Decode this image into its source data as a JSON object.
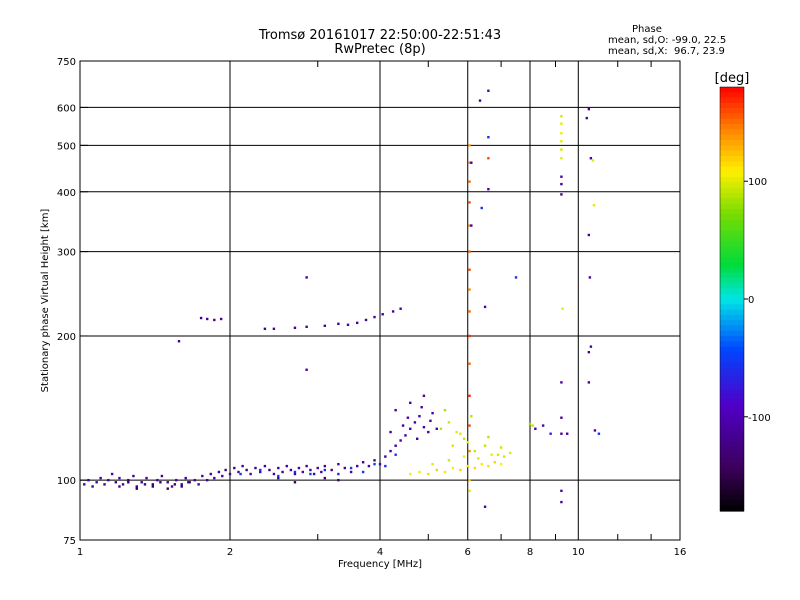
{
  "header": {
    "title": "Tromsø 20161017 22:50:00-22:51:43",
    "subtitle": "RwPretec (8p)"
  },
  "phase_info": {
    "heading": "Phase",
    "line_o": "mean, sd,O: -99.0, 22.5",
    "line_x": "mean, sd,X:  96.7, 23.9"
  },
  "chart_data": {
    "type": "scatter",
    "xlabel": "Frequency [MHz]",
    "ylabel": "Stationary phase Virtual Height [km]",
    "x_scale": "log2",
    "y_scale": "log",
    "xlim": [
      1,
      16
    ],
    "ylim": [
      75,
      750
    ],
    "x_ticks": [
      1,
      2,
      4,
      6,
      8,
      10,
      16
    ],
    "x_tick_labels": [
      "1",
      "2",
      "4",
      "6",
      "8",
      "10",
      "16"
    ],
    "y_ticks": [
      75,
      100,
      200,
      300,
      400,
      500,
      600,
      750
    ],
    "y_tick_labels": [
      "75",
      "100",
      "200",
      "300",
      "400",
      "500",
      "600",
      "750"
    ],
    "grid": true,
    "colorbar": {
      "label": "[deg]",
      "range": [
        -180,
        180
      ],
      "ticks": [
        100,
        0,
        -100
      ],
      "tick_labels": [
        "100",
        "0",
        "-100"
      ]
    },
    "series": [
      {
        "points": [
          [
            1.02,
            98,
            -110
          ],
          [
            1.04,
            100,
            -115
          ],
          [
            1.06,
            97,
            -120
          ],
          [
            1.08,
            99,
            -105
          ],
          [
            1.1,
            101,
            -112
          ],
          [
            1.12,
            98,
            -125
          ],
          [
            1.14,
            100,
            -118
          ],
          [
            1.16,
            103,
            -108
          ],
          [
            1.18,
            99,
            -122
          ],
          [
            1.2,
            101,
            -115
          ],
          [
            1.22,
            98,
            -110
          ],
          [
            1.25,
            100,
            -128
          ],
          [
            1.28,
            102,
            -119
          ],
          [
            1.3,
            97,
            -113
          ],
          [
            1.33,
            99,
            -121
          ],
          [
            1.36,
            101,
            -109
          ],
          [
            1.4,
            98,
            -126
          ],
          [
            1.43,
            100,
            -117
          ],
          [
            1.46,
            102,
            -111
          ],
          [
            1.5,
            99,
            -123
          ],
          [
            1.53,
            97,
            -116
          ],
          [
            1.56,
            100,
            -108
          ],
          [
            1.6,
            98,
            -120
          ],
          [
            1.63,
            101,
            -114
          ],
          [
            1.66,
            99,
            -127
          ],
          [
            1.7,
            100,
            -112
          ],
          [
            1.73,
            98,
            -118
          ],
          [
            1.76,
            102,
            -106
          ],
          [
            1.8,
            100,
            -121
          ],
          [
            1.83,
            103,
            -113
          ],
          [
            1.86,
            101,
            -110
          ],
          [
            1.9,
            104,
            -119
          ],
          [
            1.93,
            102,
            -107
          ],
          [
            1.96,
            105,
            -115
          ],
          [
            2.0,
            103,
            -112
          ],
          [
            2.04,
            106,
            -118
          ],
          [
            2.08,
            104,
            -109
          ],
          [
            2.12,
            107,
            -114
          ],
          [
            2.16,
            105,
            -120
          ],
          [
            2.2,
            103,
            -111
          ],
          [
            2.25,
            106,
            -116
          ],
          [
            2.3,
            104,
            -108
          ],
          [
            2.35,
            107,
            -113
          ],
          [
            2.4,
            105,
            -119
          ],
          [
            2.45,
            103,
            -110
          ],
          [
            2.5,
            106,
            -115
          ],
          [
            2.55,
            104,
            -121
          ],
          [
            2.6,
            107,
            -109
          ],
          [
            2.65,
            105,
            -112
          ],
          [
            2.7,
            103,
            -117
          ],
          [
            2.75,
            106,
            -111
          ],
          [
            2.8,
            104,
            -106
          ],
          [
            2.85,
            107,
            -118
          ],
          [
            2.9,
            105,
            -113
          ],
          [
            2.95,
            103,
            -110
          ],
          [
            3.0,
            106,
            -116
          ],
          [
            3.05,
            104,
            -108
          ],
          [
            3.1,
            107,
            -114
          ],
          [
            3.2,
            105,
            -119
          ],
          [
            3.3,
            108,
            -111
          ],
          [
            3.4,
            106,
            -116
          ],
          [
            3.5,
            104,
            -109
          ],
          [
            3.6,
            107,
            -113
          ],
          [
            3.7,
            109,
            -118
          ],
          [
            3.8,
            107,
            -111
          ],
          [
            3.9,
            110,
            -115
          ],
          [
            4.0,
            108,
            -108
          ],
          [
            4.1,
            112,
            -114
          ],
          [
            4.2,
            115,
            -110
          ],
          [
            4.3,
            118,
            -116
          ],
          [
            4.4,
            121,
            -109
          ],
          [
            4.5,
            124,
            -113
          ],
          [
            4.6,
            128,
            -107
          ],
          [
            4.7,
            132,
            -112
          ],
          [
            4.8,
            136,
            -105
          ],
          [
            4.9,
            129,
            -110
          ],
          [
            5.0,
            126,
            -104
          ],
          [
            4.3,
            140,
            -112
          ],
          [
            4.6,
            145,
            -108
          ],
          [
            4.9,
            150,
            -111
          ],
          [
            5.1,
            138,
            -106
          ],
          [
            4.45,
            130,
            -119
          ],
          [
            4.75,
            122,
            -114
          ],
          [
            5.05,
            133,
            -109
          ],
          [
            4.2,
            126,
            -117
          ],
          [
            4.55,
            135,
            -105
          ],
          [
            4.85,
            142,
            -110
          ],
          [
            5.2,
            128,
            -108
          ]
        ]
      },
      {
        "points": [
          [
            1.4,
            97,
            -140
          ],
          [
            1.45,
            99,
            -135
          ],
          [
            1.5,
            96,
            -145
          ],
          [
            1.55,
            98,
            -138
          ],
          [
            1.6,
            97,
            -142
          ],
          [
            1.65,
            99,
            -133
          ],
          [
            1.3,
            96,
            -148
          ],
          [
            1.35,
            98,
            -137
          ],
          [
            1.2,
            97,
            -130
          ],
          [
            1.25,
            99,
            -144
          ],
          [
            2.5,
            101,
            -138
          ],
          [
            2.7,
            99,
            -141
          ],
          [
            3.1,
            101,
            -136
          ],
          [
            3.3,
            100,
            -139
          ]
        ]
      },
      {
        "points": [
          [
            2.1,
            103,
            -60
          ],
          [
            2.3,
            105,
            -55
          ],
          [
            2.5,
            102,
            -48
          ],
          [
            2.7,
            104,
            -62
          ],
          [
            2.9,
            103,
            -50
          ],
          [
            3.1,
            105,
            -58
          ],
          [
            3.3,
            103,
            -64
          ],
          [
            3.5,
            106,
            -52
          ],
          [
            3.7,
            104,
            -57
          ],
          [
            3.9,
            108,
            -49
          ],
          [
            4.1,
            107,
            -61
          ],
          [
            4.3,
            113,
            -54
          ]
        ]
      },
      {
        "points": [
          [
            4.6,
            103,
            110
          ],
          [
            4.8,
            104,
            105
          ],
          [
            5.0,
            103,
            115
          ],
          [
            5.2,
            105,
            120
          ],
          [
            5.4,
            104,
            112
          ],
          [
            5.6,
            106,
            108
          ],
          [
            5.8,
            105,
            118
          ],
          [
            6.0,
            107,
            111
          ],
          [
            6.2,
            106,
            116
          ],
          [
            6.4,
            108,
            109
          ],
          [
            6.6,
            107,
            113
          ],
          [
            6.8,
            109,
            117
          ],
          [
            7.0,
            108,
            110
          ],
          [
            5.1,
            108,
            100
          ],
          [
            5.5,
            110,
            95
          ],
          [
            5.9,
            112,
            104
          ],
          [
            6.3,
            111,
            98
          ],
          [
            6.7,
            113,
            102
          ],
          [
            7.1,
            112,
            96
          ],
          [
            5.3,
            128,
            90
          ],
          [
            5.5,
            132,
            95
          ],
          [
            5.7,
            126,
            100
          ],
          [
            5.9,
            122,
            92
          ],
          [
            6.1,
            136,
            88
          ],
          [
            5.6,
            118,
            97
          ],
          [
            5.8,
            125,
            99
          ],
          [
            6.0,
            120,
            101
          ],
          [
            6.2,
            115,
            94
          ],
          [
            6.5,
            118,
            91
          ],
          [
            6.9,
            113,
            97
          ],
          [
            7.3,
            114,
            100
          ],
          [
            5.4,
            140,
            86
          ],
          [
            6.6,
            123,
            89
          ],
          [
            7.0,
            117,
            93
          ]
        ]
      },
      {
        "points": [
          [
            1.58,
            195,
            -115
          ],
          [
            1.75,
            218,
            -120
          ],
          [
            1.8,
            217,
            -112
          ],
          [
            1.86,
            216,
            -118
          ],
          [
            1.92,
            217,
            -110
          ],
          [
            2.35,
            207,
            -115
          ],
          [
            2.45,
            207,
            -108
          ],
          [
            2.7,
            208,
            -118
          ],
          [
            2.85,
            209,
            -111
          ],
          [
            3.1,
            210,
            -114
          ],
          [
            3.3,
            212,
            -117
          ],
          [
            3.45,
            211,
            -109
          ],
          [
            3.6,
            213,
            -113
          ],
          [
            3.75,
            216,
            -119
          ],
          [
            3.9,
            219,
            -110
          ],
          [
            4.05,
            222,
            -115
          ],
          [
            4.25,
            225,
            -108
          ],
          [
            4.4,
            228,
            -112
          ],
          [
            2.85,
            265,
            -115
          ],
          [
            2.85,
            170,
            -110
          ]
        ]
      },
      {
        "points": [
          [
            6.05,
            95,
            100
          ],
          [
            6.05,
            100,
            120
          ],
          [
            6.05,
            115,
            140
          ],
          [
            6.05,
            130,
            160
          ],
          [
            6.05,
            150,
            170
          ],
          [
            6.05,
            175,
            150
          ],
          [
            6.05,
            200,
            165
          ],
          [
            6.05,
            225,
            150
          ],
          [
            6.05,
            250,
            140
          ],
          [
            6.05,
            275,
            160
          ],
          [
            6.05,
            300,
            150
          ],
          [
            6.05,
            340,
            140
          ],
          [
            6.05,
            380,
            160
          ],
          [
            6.05,
            420,
            150
          ],
          [
            6.05,
            460,
            140
          ],
          [
            6.05,
            500,
            135
          ],
          [
            6.1,
            460,
            -115
          ],
          [
            6.1,
            340,
            -110
          ],
          [
            6.35,
            620,
            -120
          ],
          [
            6.4,
            370,
            -60
          ],
          [
            6.5,
            230,
            -110
          ],
          [
            6.6,
            650,
            -105
          ],
          [
            6.6,
            520,
            -60
          ],
          [
            6.6,
            470,
            160
          ],
          [
            6.6,
            405,
            -110
          ],
          [
            6.5,
            88,
            -110
          ]
        ]
      },
      {
        "points": [
          [
            9.25,
            470,
            100
          ],
          [
            9.25,
            490,
            95
          ],
          [
            9.25,
            510,
            100
          ],
          [
            9.25,
            530,
            105
          ],
          [
            9.25,
            555,
            100
          ],
          [
            9.25,
            575,
            95
          ],
          [
            9.3,
            228,
            100
          ],
          [
            9.25,
            430,
            -110
          ],
          [
            9.25,
            415,
            -115
          ],
          [
            9.25,
            395,
            -120
          ],
          [
            9.25,
            160,
            -110
          ],
          [
            9.25,
            135,
            -120
          ],
          [
            9.25,
            125,
            -115
          ],
          [
            9.25,
            95,
            -110
          ],
          [
            9.25,
            90,
            -110
          ],
          [
            10.5,
            595,
            -110
          ],
          [
            10.4,
            570,
            -110
          ],
          [
            10.6,
            470,
            -110
          ],
          [
            10.7,
            465,
            100
          ],
          [
            10.75,
            375,
            100
          ],
          [
            10.5,
            325,
            -110
          ],
          [
            10.55,
            265,
            -110
          ],
          [
            10.6,
            190,
            -110
          ],
          [
            10.5,
            185,
            -110
          ],
          [
            10.5,
            160,
            -110
          ],
          [
            10.8,
            127,
            -110
          ],
          [
            11.0,
            125,
            -60
          ],
          [
            8.8,
            125,
            -70
          ],
          [
            8.5,
            130,
            -110
          ],
          [
            8.2,
            128,
            -100
          ],
          [
            8.0,
            131,
            80
          ],
          [
            8.1,
            130,
            90
          ],
          [
            7.5,
            265,
            -60
          ],
          [
            9.5,
            125,
            -110
          ]
        ]
      }
    ]
  },
  "colors": {
    "background": "#ffffff",
    "axis": "#000000",
    "grid": "#000000"
  }
}
